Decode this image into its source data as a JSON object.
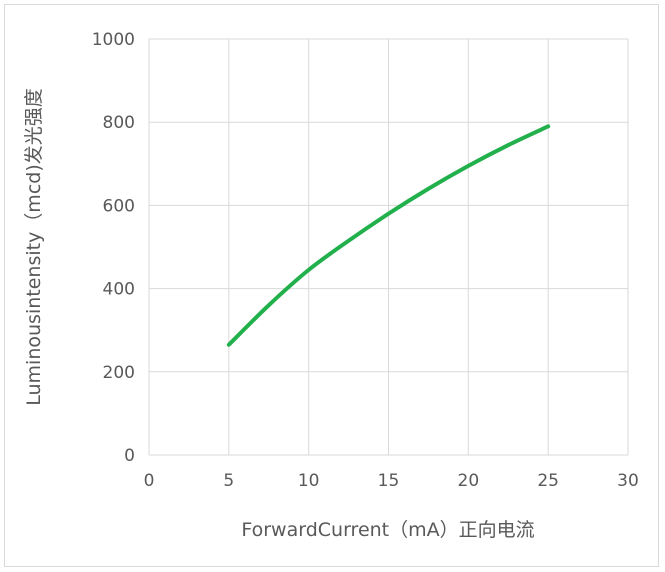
{
  "chart_data": {
    "type": "line",
    "title": "",
    "xlabel": "ForwardCurrent（mA）正向电流",
    "ylabel": "Luminousintensity（mcd)发光强度",
    "xlim": [
      0,
      30
    ],
    "ylim": [
      0,
      1000
    ],
    "x_ticks": [
      0,
      5,
      10,
      15,
      20,
      25,
      30
    ],
    "y_ticks": [
      0,
      200,
      400,
      600,
      800,
      1000
    ],
    "grid": true,
    "legend": "none",
    "series": [
      {
        "color": "#21b04b",
        "x": [
          5,
          7.5,
          10,
          12.5,
          15,
          17.5,
          20,
          22.5,
          25
        ],
        "y": [
          265,
          360,
          445,
          515,
          580,
          640,
          695,
          745,
          790
        ]
      }
    ]
  }
}
